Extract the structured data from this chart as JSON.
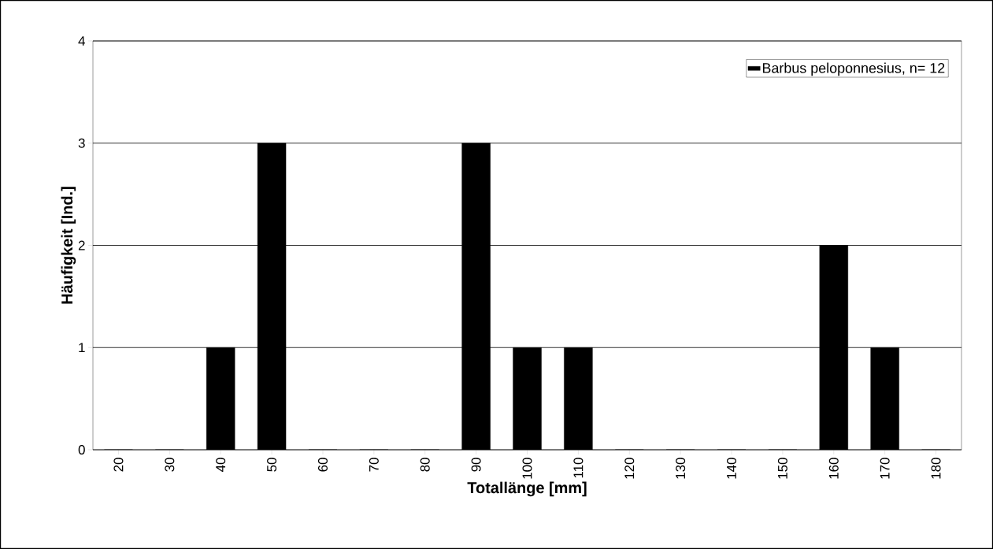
{
  "chart_data": {
    "type": "bar",
    "xlabel": "Totallänge [mm]",
    "ylabel": "Häufigkeit [Ind.]",
    "categories": [
      "20",
      "30",
      "40",
      "50",
      "60",
      "70",
      "80",
      "90",
      "100",
      "110",
      "120",
      "130",
      "140",
      "150",
      "160",
      "170",
      "180"
    ],
    "series": [
      {
        "name": "Barbus peloponnesius, n= 12",
        "color": "#000000",
        "values": [
          0,
          0,
          1,
          3,
          0,
          0,
          0,
          3,
          1,
          1,
          0,
          0,
          0,
          0,
          2,
          1,
          0
        ]
      }
    ],
    "ylim": [
      0,
      4
    ],
    "yticks": [
      0,
      1,
      2,
      3,
      4
    ],
    "grid": "y",
    "legend": "top right"
  }
}
